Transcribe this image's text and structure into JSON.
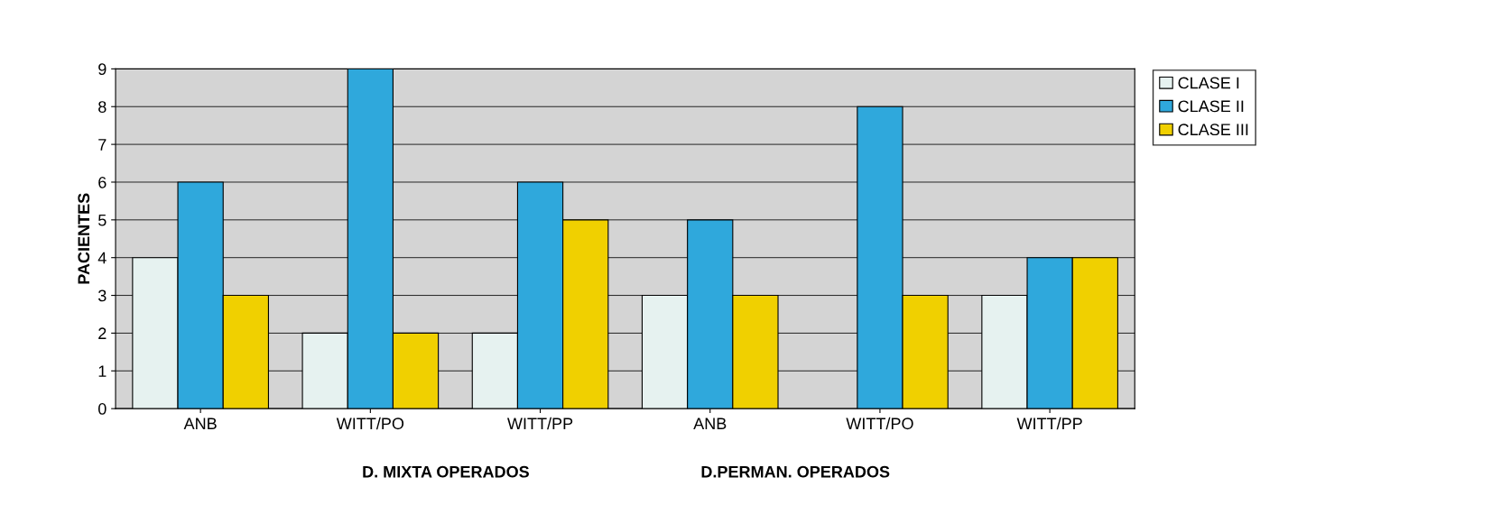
{
  "chart_data": {
    "type": "bar",
    "ylabel": "PACIENTES",
    "categories": [
      "ANB",
      "WITT/PO",
      "WITT/PP",
      "ANB",
      "WITT/PO",
      "WITT/PP"
    ],
    "series": [
      {
        "name": "CLASE I",
        "color": "#e6f2f0",
        "values": [
          4,
          2,
          2,
          3,
          0,
          3
        ]
      },
      {
        "name": "CLASE II",
        "color": "#2fa8dc",
        "values": [
          6,
          9,
          6,
          5,
          8,
          4
        ]
      },
      {
        "name": "CLASE III",
        "color": "#f0d000",
        "values": [
          3,
          2,
          5,
          3,
          3,
          4
        ]
      }
    ],
    "ylim": [
      0,
      9
    ],
    "yticks": [
      0,
      1,
      2,
      3,
      4,
      5,
      6,
      7,
      8,
      9
    ],
    "grid": "y",
    "legend": "top right",
    "annotations": [
      "D. MIXTA OPERADOS",
      "D.PERMAN. OPERADOS"
    ]
  }
}
